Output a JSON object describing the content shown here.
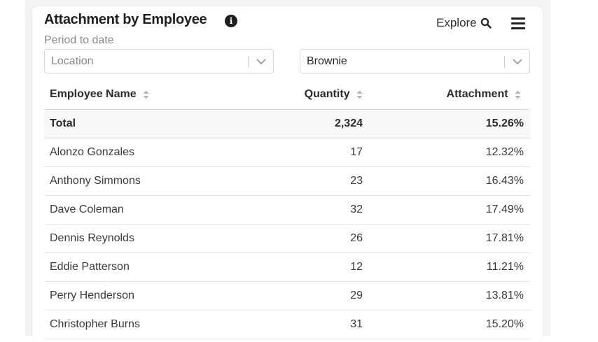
{
  "widget": {
    "title": "Attachment by Employee",
    "subtitle": "Period to date",
    "explore_label": "Explore",
    "icons": [
      "info-icon",
      "search-icon",
      "hamburger-menu-icon",
      "chevron-down-icon",
      "sort-icon"
    ]
  },
  "filters": {
    "location_placeholder": "Location",
    "product_value": "Brownie"
  },
  "table": {
    "columns": [
      "Employee Name",
      "Quantity",
      "Attachment"
    ],
    "total": {
      "name": "Total",
      "quantity": "2,324",
      "attachment": "15.26%"
    },
    "rows": [
      {
        "name": "Alonzo Gonzales",
        "quantity": "17",
        "attachment": "12.32%"
      },
      {
        "name": "Anthony Simmons",
        "quantity": "23",
        "attachment": "16.43%"
      },
      {
        "name": "Dave Coleman",
        "quantity": "32",
        "attachment": "17.49%"
      },
      {
        "name": "Dennis Reynolds",
        "quantity": "26",
        "attachment": "17.81%"
      },
      {
        "name": "Eddie Patterson",
        "quantity": "12",
        "attachment": "11.21%"
      },
      {
        "name": "Perry Henderson",
        "quantity": "29",
        "attachment": "13.81%"
      },
      {
        "name": "Christopher Burns",
        "quantity": "31",
        "attachment": "15.20%"
      }
    ]
  }
}
